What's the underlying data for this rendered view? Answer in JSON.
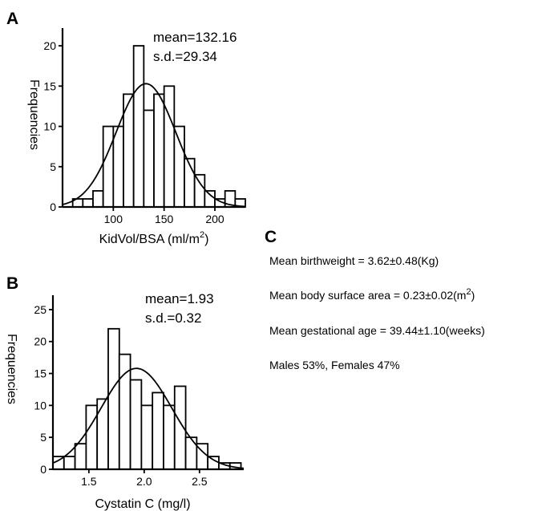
{
  "chart_data": [
    {
      "panel": "A",
      "type": "bar",
      "xlabel": "KidVol/BSA (ml/m",
      "xlabel_sup": "2",
      "xlabel_end": ")",
      "ylabel": "Frequencies",
      "xlim": [
        50,
        230
      ],
      "ylim": [
        0,
        22
      ],
      "xticks": [
        100,
        150,
        200
      ],
      "yticks": [
        0,
        5,
        10,
        15,
        20
      ],
      "bin_width": 10,
      "bins": [
        {
          "x0": 60,
          "x1": 70,
          "value": 1
        },
        {
          "x0": 70,
          "x1": 80,
          "value": 1
        },
        {
          "x0": 80,
          "x1": 90,
          "value": 2
        },
        {
          "x0": 90,
          "x1": 100,
          "value": 10
        },
        {
          "x0": 100,
          "x1": 110,
          "value": 10
        },
        {
          "x0": 110,
          "x1": 120,
          "value": 14
        },
        {
          "x0": 120,
          "x1": 130,
          "value": 20
        },
        {
          "x0": 130,
          "x1": 140,
          "value": 12
        },
        {
          "x0": 140,
          "x1": 150,
          "value": 14
        },
        {
          "x0": 150,
          "x1": 160,
          "value": 15
        },
        {
          "x0": 160,
          "x1": 170,
          "value": 10
        },
        {
          "x0": 170,
          "x1": 180,
          "value": 6
        },
        {
          "x0": 180,
          "x1": 190,
          "value": 4
        },
        {
          "x0": 190,
          "x1": 200,
          "value": 2
        },
        {
          "x0": 200,
          "x1": 210,
          "value": 1
        },
        {
          "x0": 210,
          "x1": 220,
          "value": 2
        },
        {
          "x0": 220,
          "x1": 230,
          "value": 1
        }
      ],
      "fit": {
        "mean": 132.16,
        "sd": 29.34,
        "peak": 15.3
      },
      "stats": {
        "mean_label": "mean=132.16",
        "sd_label": "s.d.=29.34"
      }
    },
    {
      "panel": "B",
      "type": "bar",
      "xlabel": "Cystatin C (mg/l)",
      "ylabel": "Frequencies",
      "xlim": [
        1.175,
        2.9
      ],
      "ylim": [
        0,
        27
      ],
      "xticks": [
        1.5,
        2.0,
        2.5
      ],
      "xtick_labels": [
        "1.5",
        "2.0",
        "2.5"
      ],
      "yticks": [
        0,
        5,
        10,
        15,
        20,
        25
      ],
      "bin_width": 0.1,
      "bins": [
        {
          "x0": 1.175,
          "x1": 1.275,
          "value": 2
        },
        {
          "x0": 1.275,
          "x1": 1.375,
          "value": 2
        },
        {
          "x0": 1.375,
          "x1": 1.475,
          "value": 4
        },
        {
          "x0": 1.475,
          "x1": 1.575,
          "value": 10
        },
        {
          "x0": 1.575,
          "x1": 1.675,
          "value": 11
        },
        {
          "x0": 1.675,
          "x1": 1.775,
          "value": 22
        },
        {
          "x0": 1.775,
          "x1": 1.875,
          "value": 18
        },
        {
          "x0": 1.875,
          "x1": 1.975,
          "value": 14
        },
        {
          "x0": 1.975,
          "x1": 2.075,
          "value": 10
        },
        {
          "x0": 2.075,
          "x1": 2.175,
          "value": 12
        },
        {
          "x0": 2.175,
          "x1": 2.275,
          "value": 10
        },
        {
          "x0": 2.275,
          "x1": 2.375,
          "value": 13
        },
        {
          "x0": 2.375,
          "x1": 2.475,
          "value": 5
        },
        {
          "x0": 2.475,
          "x1": 2.575,
          "value": 4
        },
        {
          "x0": 2.575,
          "x1": 2.675,
          "value": 2
        },
        {
          "x0": 2.675,
          "x1": 2.775,
          "value": 1
        },
        {
          "x0": 2.775,
          "x1": 2.875,
          "value": 1
        }
      ],
      "fit": {
        "mean": 1.93,
        "sd": 0.32,
        "peak": 15.8
      },
      "stats": {
        "mean_label": "mean=1.93",
        "sd_label": "s.d.=0.32"
      }
    }
  ],
  "panel_c": {
    "letter": "C",
    "birthweight": "Mean birthweight = 3.62±0.48(Kg)",
    "bsa_prefix": "Mean body surface area = 0.23±0.02(m",
    "bsa_sup": "2",
    "bsa_suffix": ")",
    "gestational_age": "Mean gestational age = 39.44±1.10(weeks)",
    "sex_ratio": "Males 53%, Females 47%"
  }
}
